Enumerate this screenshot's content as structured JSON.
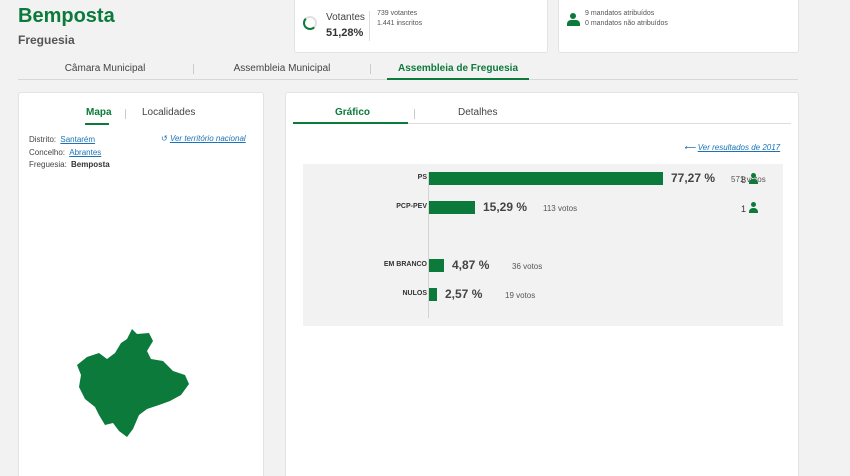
{
  "header": {
    "title": "Bemposta",
    "subtitle": "Freguesia"
  },
  "votes_card": {
    "label": "Votantes",
    "pct": "51,28%",
    "pct_value": 51.28,
    "votantes": "739 votantes",
    "inscritos": "1.441 inscritos"
  },
  "mandates_card": {
    "attributed": "9 mandatos atribuídos",
    "not_attributed": "0 mandatos não atribuídos"
  },
  "top_tabs": [
    {
      "label": "Câmara Municipal",
      "active": false
    },
    {
      "label": "Assembleia Municipal",
      "active": false
    },
    {
      "label": "Assembleia de Freguesia",
      "active": true
    }
  ],
  "left_panel": {
    "tabs": [
      {
        "label": "Mapa",
        "active": true
      },
      {
        "label": "Localidades",
        "active": false
      }
    ],
    "distrito": {
      "label": "Distrito:",
      "value": "Santarém"
    },
    "concelho": {
      "label": "Concelho:",
      "value": "Abrantes"
    },
    "freguesia": {
      "label": "Freguesia:",
      "value": "Bemposta"
    },
    "national_link": "Ver território nacional",
    "map_color": "#0b7a3b"
  },
  "right_panel": {
    "tabs": [
      {
        "label": "Gráfico",
        "active": true
      },
      {
        "label": "Detalhes",
        "active": false
      }
    ],
    "prev_results_link": "Ver resultados de 2017"
  },
  "chart_data": {
    "type": "bar",
    "orientation": "horizontal",
    "categories": [
      "PS",
      "PCP-PEV",
      "EM BRANCO",
      "NULOS"
    ],
    "values": [
      77.27,
      15.29,
      4.87,
      2.57
    ],
    "pct_labels": [
      "77,27 %",
      "15,29 %",
      "4,87 %",
      "2,57 %"
    ],
    "vote_labels": [
      "571 votos",
      "113 votos",
      "36 votos",
      "19 votos"
    ],
    "votes": [
      571,
      113,
      36,
      19
    ],
    "seats": [
      "8",
      "1",
      "",
      ""
    ],
    "bar_color": "#0b7a3b"
  },
  "colors": {
    "accent": "#0b7a3b",
    "link": "#1a73b8"
  }
}
